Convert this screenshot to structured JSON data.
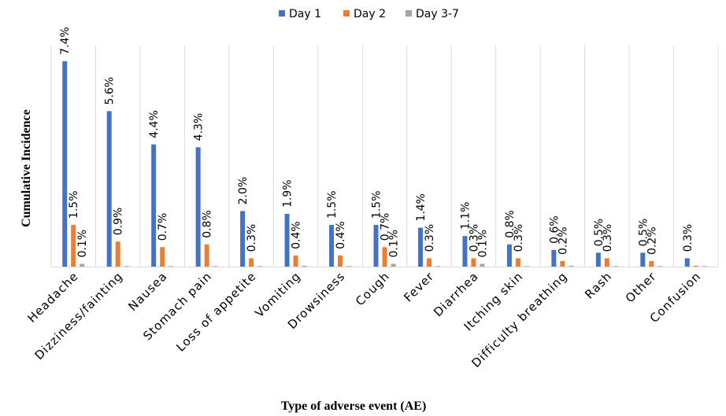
{
  "chart_data": {
    "type": "bar",
    "title": "",
    "xlabel": "Type of adverse event (AE)",
    "ylabel": "Cumulative Incidence",
    "ylim": [
      0,
      8
    ],
    "grid": "vertical category separators",
    "legend_position": "top-center",
    "categories": [
      "Headache",
      "Dizziness/fainting",
      "Nausea",
      "Stomach pain",
      "Loss of appetite",
      "Vomiting",
      "Drowsiness",
      "Cough",
      "Fever",
      "Diarrhea",
      "Itching skin",
      "Difficulty breathing",
      "Rash",
      "Other",
      "Confusion"
    ],
    "series": [
      {
        "name": "Day 1",
        "color": "#4472C4",
        "values": [
          7.4,
          5.6,
          4.4,
          4.3,
          2.0,
          1.9,
          1.5,
          1.5,
          1.4,
          1.1,
          0.8,
          0.6,
          0.5,
          0.5,
          0.3
        ],
        "labels": [
          "7.4%",
          "5.6%",
          "4.4%",
          "4.3%",
          "2.0%",
          "1.9%",
          "1.5%",
          "1.5%",
          "1.4%",
          "1.1%",
          "0.8%",
          "0.6%",
          "0.5%",
          "0.5%",
          "0.3%"
        ]
      },
      {
        "name": "Day 2",
        "color": "#ED7D31",
        "values": [
          1.5,
          0.9,
          0.7,
          0.8,
          0.3,
          0.4,
          0.4,
          0.7,
          0.3,
          0.3,
          0.3,
          0.2,
          0.3,
          0.2,
          0.03
        ],
        "labels": [
          "1.5%",
          "0.9%",
          "0.7%",
          "0.8%",
          "0.3%",
          "0.4%",
          "0.4%",
          "0.7%",
          "0.3%",
          "0.3%",
          "0.3%",
          "0.2%",
          "0.3%",
          "0.2%",
          ""
        ]
      },
      {
        "name": "Day 3-7",
        "color": "#A5A5A5",
        "values": [
          0.1,
          0.02,
          0.02,
          0.02,
          0.02,
          0.03,
          0.02,
          0.1,
          0.02,
          0.1,
          0.02,
          0.03,
          0.02,
          0.02,
          0.02
        ],
        "labels": [
          "0.1%",
          "",
          "",
          "",
          "",
          "",
          "",
          "0.1%",
          "",
          "0.1%",
          "",
          "",
          "",
          "",
          ""
        ]
      }
    ]
  }
}
